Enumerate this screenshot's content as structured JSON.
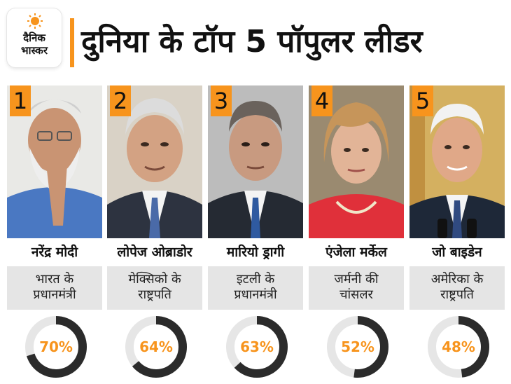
{
  "header": {
    "logo_line1": "दैनिक",
    "logo_line2": "भास्कर",
    "title": "दुनिया के टॉप 5 पॉपुलर लीडर"
  },
  "colors": {
    "accent": "#f7941d",
    "ring_dark": "#2b2b2b",
    "ring_light": "#e6e6e6"
  },
  "leaders": [
    {
      "rank": "1",
      "name": "नरेंद्र मोदी",
      "role1": "भारत के",
      "role2": "प्रधानमंत्री",
      "approval_label": "70%",
      "approval": 70
    },
    {
      "rank": "2",
      "name": "लोपेज ओब्राडोर",
      "role1": "मेक्सिको के",
      "role2": "राष्ट्रपति",
      "approval_label": "64%",
      "approval": 64
    },
    {
      "rank": "3",
      "name": "मारियो ड्रागी",
      "role1": "इटली के",
      "role2": "प्रधानमंत्री",
      "approval_label": "63%",
      "approval": 63
    },
    {
      "rank": "4",
      "name": "एंजेला मर्केल",
      "role1": "जर्मनी की",
      "role2": "चांसलर",
      "approval_label": "52%",
      "approval": 52
    },
    {
      "rank": "5",
      "name": "जो बाइडेन",
      "role1": "अमेरिका के",
      "role2": "राष्ट्रपति",
      "approval_label": "48%",
      "approval": 48
    }
  ]
}
